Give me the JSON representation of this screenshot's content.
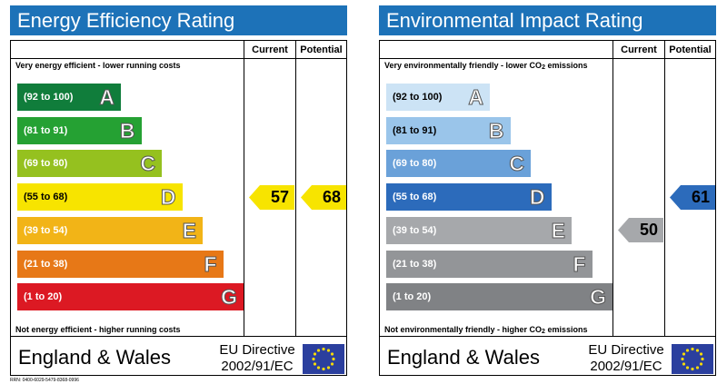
{
  "rrn": "RRN: 0400-6029-5479-8368-0996",
  "chart_data": [
    {
      "type": "bar",
      "title": "Energy Efficiency Rating",
      "columns": [
        "Current",
        "Potential"
      ],
      "top_caption": "Very energy efficient - lower running costs",
      "bottom_caption": "Not energy efficient - higher running costs",
      "bands": [
        {
          "range": "(92 to 100)",
          "letter": "A",
          "color": "#107d3b"
        },
        {
          "range": "(81 to 91)",
          "letter": "B",
          "color": "#25a133"
        },
        {
          "range": "(69 to 80)",
          "letter": "C",
          "color": "#95c11f"
        },
        {
          "range": "(55 to 68)",
          "letter": "D",
          "color": "#f7e400"
        },
        {
          "range": "(39 to 54)",
          "letter": "E",
          "color": "#f2b417"
        },
        {
          "range": "(21 to 38)",
          "letter": "F",
          "color": "#e77817"
        },
        {
          "range": "(1 to 20)",
          "letter": "G",
          "color": "#dc1923"
        }
      ],
      "current": {
        "value": 57,
        "band": "D",
        "color": "#f7e400"
      },
      "potential": {
        "value": 68,
        "band": "D",
        "color": "#f7e400"
      },
      "footer": {
        "region": "England & Wales",
        "directive_line1": "EU Directive",
        "directive_line2": "2002/91/EC"
      }
    },
    {
      "type": "bar",
      "title": "Environmental Impact Rating",
      "columns": [
        "Current",
        "Potential"
      ],
      "top_caption": "Very environmentally friendly - lower CO",
      "bottom_caption": "Not environmentally friendly - higher CO",
      "caption_subscript": "2",
      "caption_suffix": " emissions",
      "bands": [
        {
          "range": "(92 to 100)",
          "letter": "A",
          "color": "#cce3f5"
        },
        {
          "range": "(81 to 91)",
          "letter": "B",
          "color": "#9ac5ea"
        },
        {
          "range": "(69 to 80)",
          "letter": "C",
          "color": "#6aa1d9"
        },
        {
          "range": "(55 to 68)",
          "letter": "D",
          "color": "#2c6bbb"
        },
        {
          "range": "(39 to 54)",
          "letter": "E",
          "color": "#a6a8ab"
        },
        {
          "range": "(21 to 38)",
          "letter": "F",
          "color": "#939598"
        },
        {
          "range": "(1 to 20)",
          "letter": "G",
          "color": "#808285"
        }
      ],
      "current": {
        "value": 50,
        "band": "E",
        "color": "#a6a8ab"
      },
      "potential": {
        "value": 61,
        "band": "D",
        "color": "#2c6bbb"
      },
      "footer": {
        "region": "England & Wales",
        "directive_line1": "EU Directive",
        "directive_line2": "2002/91/EC"
      }
    }
  ]
}
